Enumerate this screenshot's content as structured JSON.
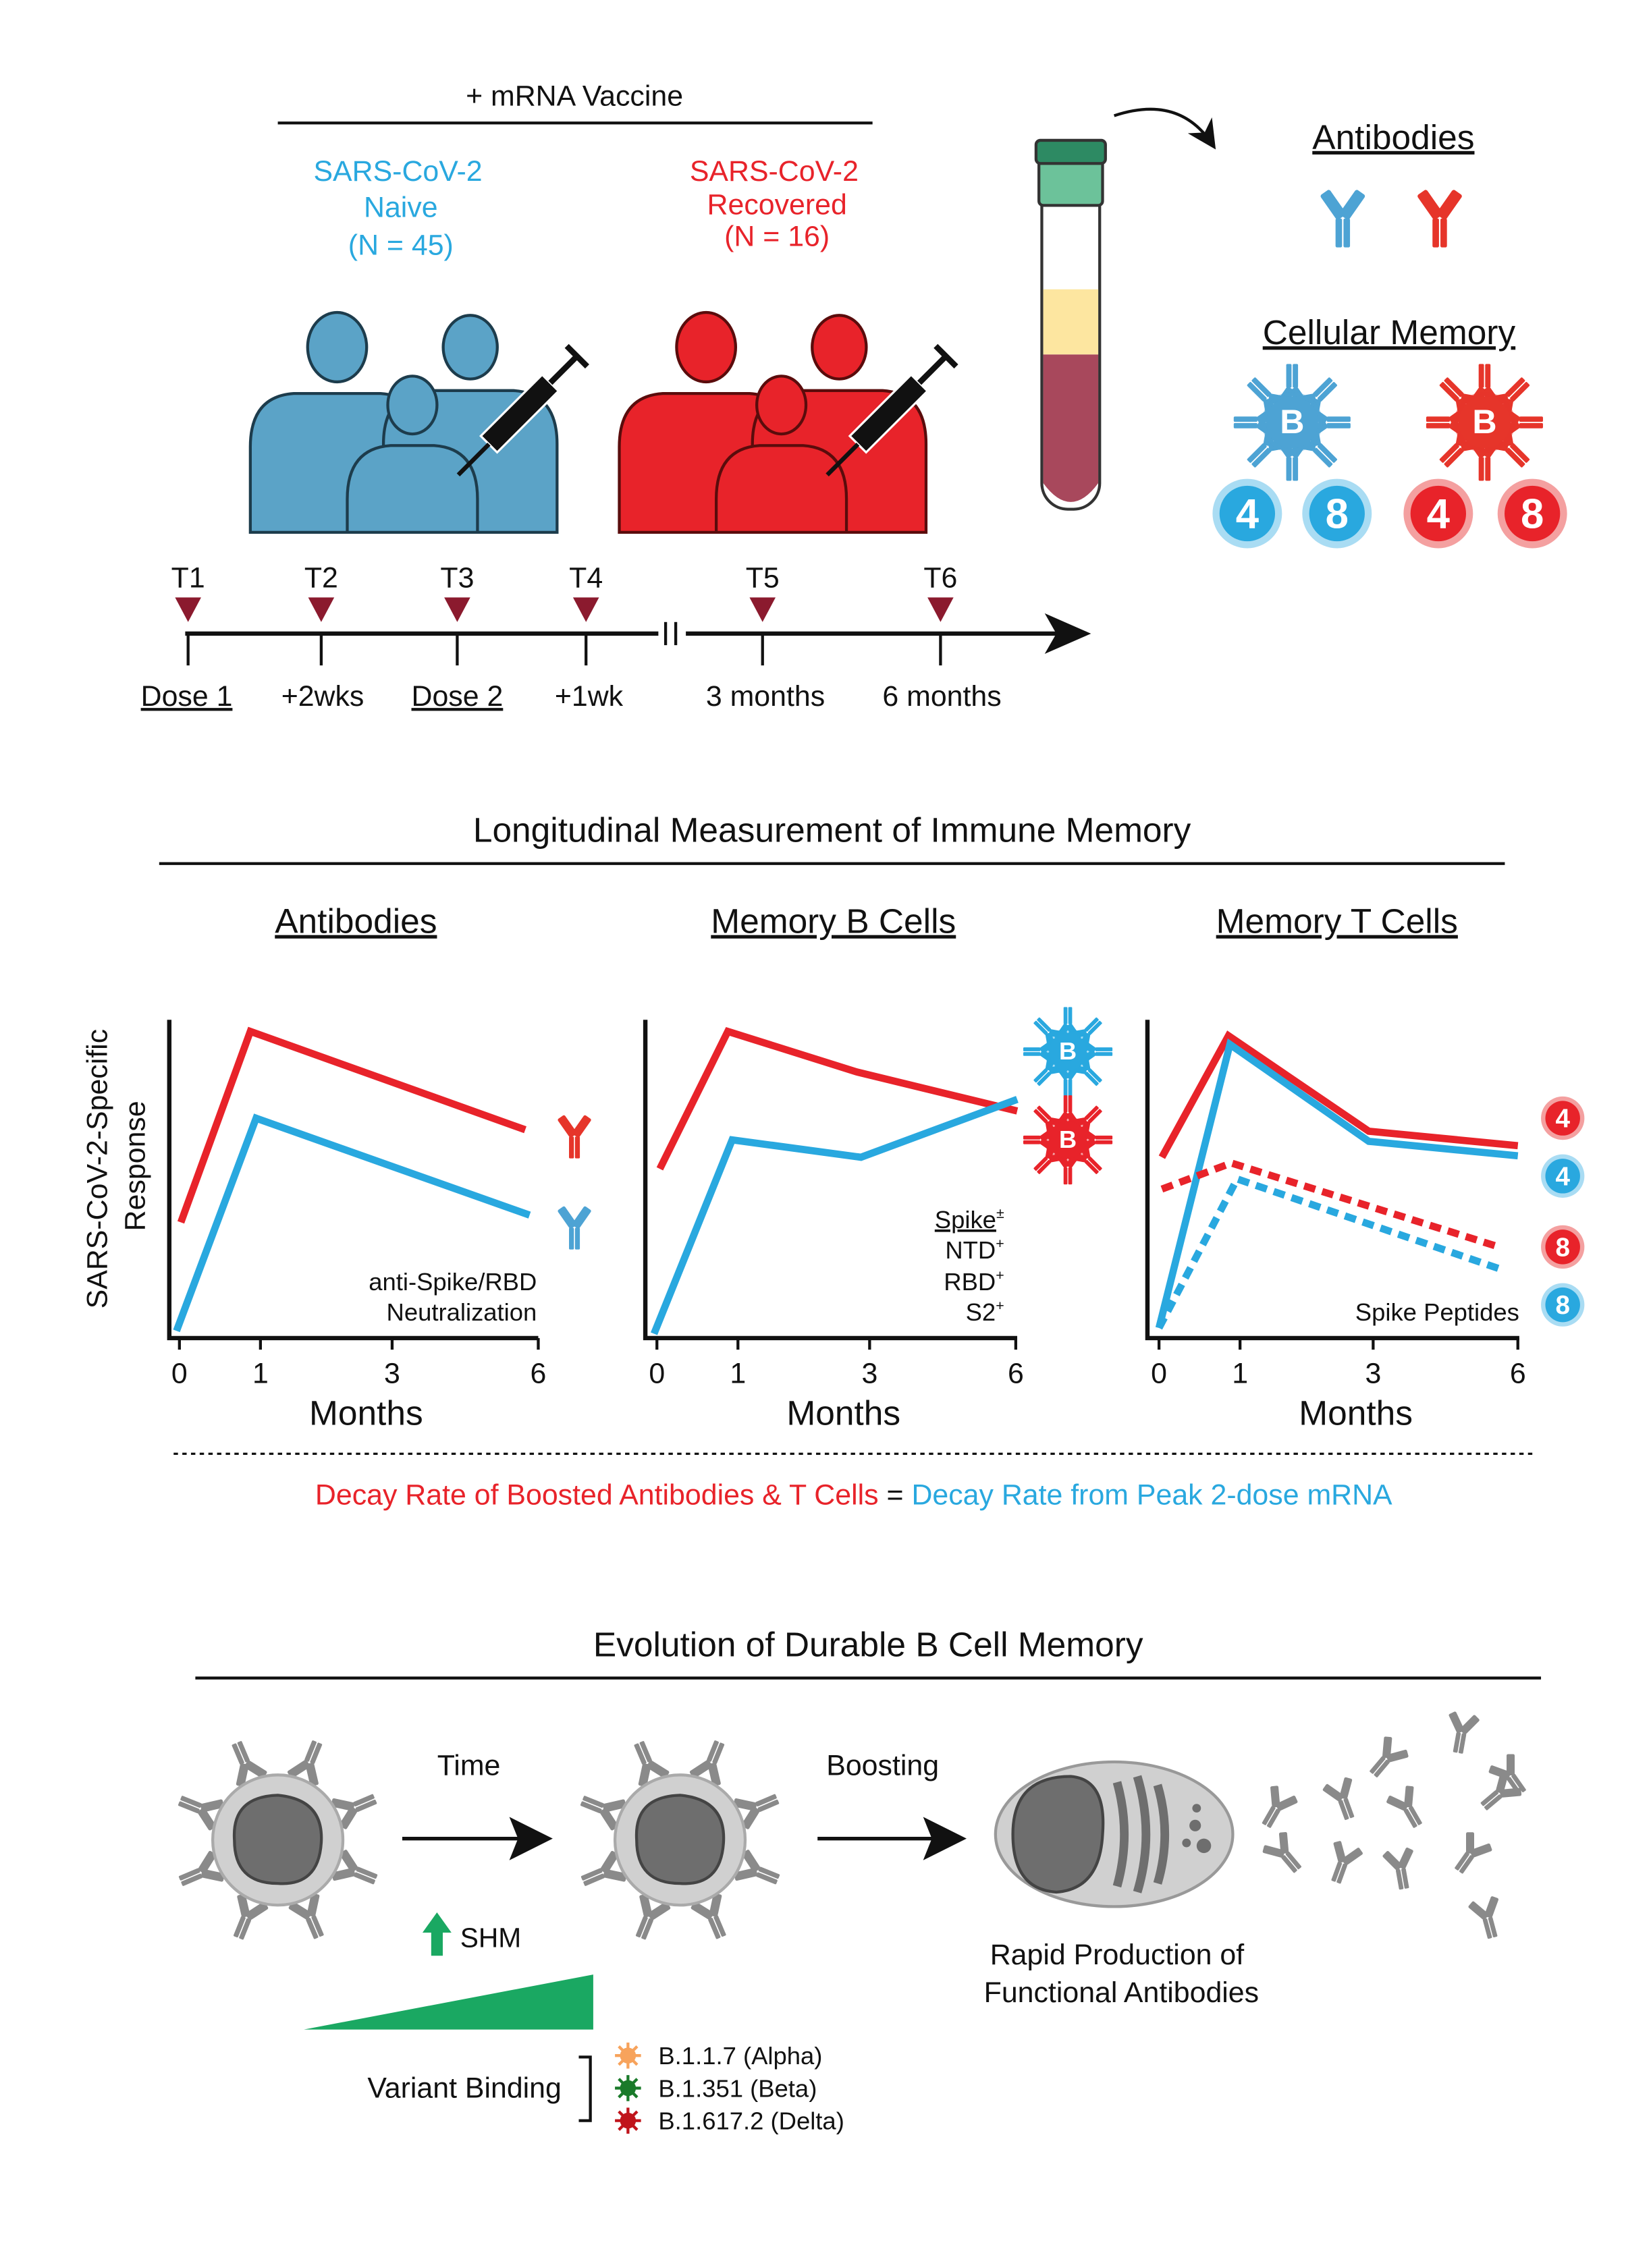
{
  "colors": {
    "naive": "#29a8df",
    "recovered": "#e8232a",
    "timepoint_marker": "#8b1a2e",
    "shm_green": "#1aa862",
    "alpha": "#f7a35c",
    "beta": "#1a7a2a",
    "delta": "#c0141b"
  },
  "top": {
    "vaccine_label": "+ mRNA Vaccine",
    "naive": {
      "line1": "SARS-CoV-2",
      "line2": "Naive",
      "line3": "(N = 45)"
    },
    "recovered": {
      "line1": "SARS-CoV-2",
      "line2": "Recovered",
      "line3": "(N = 16)"
    },
    "antibodies_title": "Antibodies",
    "cellular_memory_title": "Cellular Memory",
    "cell_labels": {
      "b": "B",
      "cd4": "4",
      "cd8": "8"
    }
  },
  "timeline": {
    "points": [
      "T1",
      "T2",
      "T3",
      "T4",
      "T5",
      "T6"
    ],
    "labels": [
      "Dose 1",
      "+2wks",
      "Dose 2",
      "+1wk",
      "3 months",
      "6 months"
    ]
  },
  "longitudinal": {
    "title": "Longitudinal Measurement of Immune Memory",
    "y_label_line1": "SARS-CoV-2-Specific",
    "y_label_line2": "Response",
    "x_label": "Months",
    "x_ticks": [
      "0",
      "1",
      "3",
      "6"
    ],
    "panels": [
      {
        "title": "Antibodies",
        "notes": [
          "anti-Spike/RBD",
          "Neutralization"
        ]
      },
      {
        "title": "Memory B Cells",
        "notes": [
          "Spike",
          "NTD",
          "RBD",
          "S2"
        ],
        "superscripts": [
          "±",
          "+",
          "+",
          "+"
        ]
      },
      {
        "title": "Memory T Cells",
        "notes": [
          "Spike Peptides"
        ]
      }
    ],
    "conclusion": {
      "red": "Decay Rate of Boosted Antibodies & T Cells",
      "equals": "=",
      "blue": "Decay Rate from Peak 2-dose mRNA"
    }
  },
  "evolution": {
    "title": "Evolution of Durable B Cell Memory",
    "time_label": "Time",
    "boosting_label": "Boosting",
    "shm_label": "SHM",
    "variant_binding_label": "Variant Binding",
    "variants": [
      "B.1.1.7 (Alpha)",
      "B.1.351 (Beta)",
      "B.1.617.2 (Delta)"
    ],
    "rapid_line1": "Rapid Production of",
    "rapid_line2": "Functional Antibodies"
  }
}
